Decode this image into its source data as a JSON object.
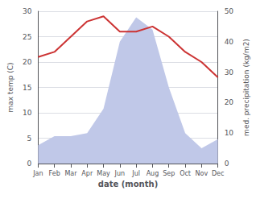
{
  "chart_data": {
    "type": "line",
    "categories": [
      "Jan",
      "Feb",
      "Mar",
      "Apr",
      "May",
      "Jun",
      "Jul",
      "Aug",
      "Sep",
      "Oct",
      "Nov",
      "Dec"
    ],
    "series": [
      {
        "type": "area",
        "axis": "y2",
        "color": "#c0c8e8",
        "values": [
          6,
          9,
          9,
          10,
          18,
          40,
          48,
          44,
          25,
          10,
          5,
          8
        ]
      },
      {
        "type": "line",
        "color": "#cc3333",
        "values": [
          21,
          22,
          25,
          28,
          29,
          26,
          26,
          27,
          25,
          22,
          20,
          17
        ]
      }
    ],
    "xlabel": "date (month)",
    "ylabel": "max temp (C)",
    "y2label": "med. precipitation (kg/m2)",
    "ylim": [
      0,
      30
    ],
    "yticks": [
      0,
      5,
      10,
      15,
      20,
      25,
      30
    ],
    "y2lim": [
      0,
      50
    ],
    "y2ticks": [
      0,
      10,
      20,
      30,
      40,
      50
    ],
    "grid": true
  }
}
